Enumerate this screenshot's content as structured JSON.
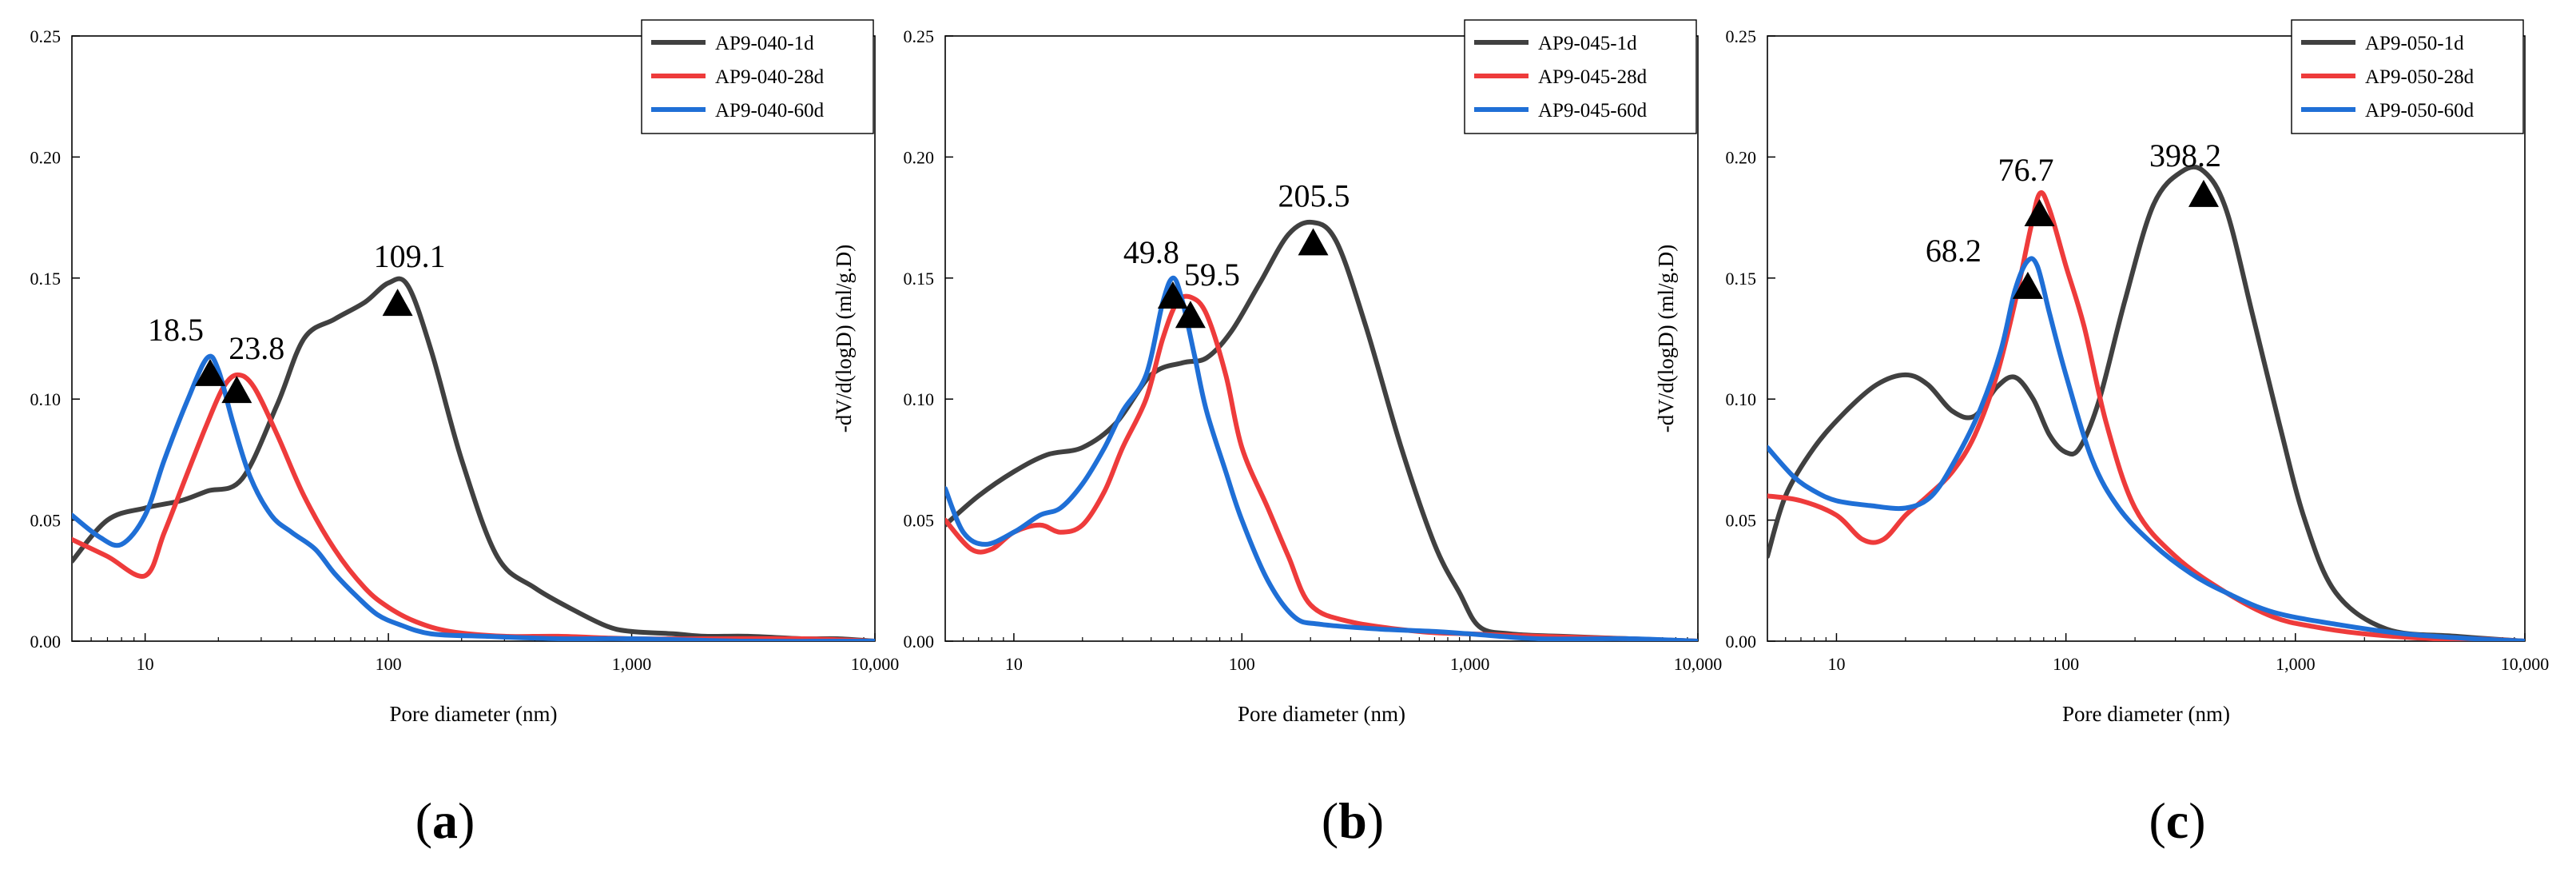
{
  "chart_data": [
    {
      "type": "line",
      "panel_label": "a",
      "xscale": "log",
      "xlim": [
        5,
        10000
      ],
      "ylim": [
        0,
        0.25
      ],
      "xticks": [
        10,
        100,
        1000,
        10000
      ],
      "xticklabels": [
        "10",
        "100",
        "1,000",
        "10,000"
      ],
      "yticks": [
        0,
        0.05,
        0.1,
        0.15,
        0.2,
        0.25
      ],
      "yticklabels": [
        "0.00",
        "0.05",
        "0.10",
        "0.15",
        "0.20",
        "0.25"
      ],
      "xlabel": "Pore diameter (nm)",
      "ylabel": "-dV/d(logD) (ml/g.D)",
      "legend": "top-right",
      "series": [
        {
          "name": "AP9-040-1d",
          "color": "#404040",
          "x": [
            5,
            7,
            10,
            14,
            18,
            25,
            35,
            45,
            60,
            80,
            100,
            120,
            150,
            200,
            280,
            400,
            600,
            800,
            1000,
            1500,
            2000,
            3000,
            5000,
            7000,
            10000
          ],
          "y": [
            0.033,
            0.05,
            0.055,
            0.058,
            0.062,
            0.067,
            0.098,
            0.125,
            0.133,
            0.14,
            0.148,
            0.147,
            0.12,
            0.075,
            0.035,
            0.022,
            0.012,
            0.006,
            0.004,
            0.003,
            0.002,
            0.002,
            0.001,
            0.001,
            0.0
          ]
        },
        {
          "name": "AP9-040-28d",
          "color": "#ee3b3b",
          "x": [
            5,
            7,
            10,
            12,
            15,
            18,
            21,
            24,
            28,
            35,
            45,
            60,
            80,
            100,
            130,
            180,
            300,
            500,
            1000,
            2000,
            5000,
            10000
          ],
          "y": [
            0.042,
            0.035,
            0.027,
            0.045,
            0.07,
            0.09,
            0.105,
            0.11,
            0.105,
            0.085,
            0.06,
            0.038,
            0.022,
            0.014,
            0.008,
            0.004,
            0.002,
            0.002,
            0.001,
            0.001,
            0.001,
            0.0
          ]
        },
        {
          "name": "AP9-040-60d",
          "color": "#1f6fd6",
          "x": [
            5,
            6.5,
            8,
            10,
            12,
            15,
            18,
            20,
            23,
            27,
            33,
            40,
            50,
            60,
            75,
            90,
            110,
            150,
            250,
            500,
            1000,
            3000,
            10000
          ],
          "y": [
            0.052,
            0.043,
            0.04,
            0.052,
            0.075,
            0.1,
            0.117,
            0.112,
            0.09,
            0.068,
            0.052,
            0.045,
            0.038,
            0.028,
            0.018,
            0.011,
            0.007,
            0.003,
            0.002,
            0.001,
            0.001,
            0.0,
            0.0
          ]
        }
      ],
      "annotations": [
        {
          "text": "18.5",
          "x": 18.5,
          "y": 0.111
        },
        {
          "text": "23.8",
          "x": 23.8,
          "y": 0.104
        },
        {
          "text": "109.1",
          "x": 109.1,
          "y": 0.14
        }
      ]
    },
    {
      "type": "line",
      "panel_label": "b",
      "xscale": "log",
      "xlim": [
        5,
        10000
      ],
      "ylim": [
        0,
        0.25
      ],
      "xticks": [
        10,
        100,
        1000,
        10000
      ],
      "xticklabels": [
        "10",
        "100",
        "1,000",
        "10,000"
      ],
      "yticks": [
        0,
        0.05,
        0.1,
        0.15,
        0.2,
        0.25
      ],
      "yticklabels": [
        "0.00",
        "0.05",
        "0.10",
        "0.15",
        "0.20",
        "0.25"
      ],
      "xlabel": "Pore diameter (nm)",
      "ylabel": "-dV/d(logD) (ml/g.D)",
      "legend": "top-right",
      "series": [
        {
          "name": "AP9-045-1d",
          "color": "#404040",
          "x": [
            5,
            7,
            10,
            14,
            20,
            28,
            40,
            55,
            70,
            90,
            120,
            160,
            205,
            260,
            350,
            500,
            700,
            900,
            1100,
            1500,
            2500,
            5000,
            10000
          ],
          "y": [
            0.048,
            0.06,
            0.07,
            0.077,
            0.08,
            0.09,
            0.11,
            0.115,
            0.117,
            0.128,
            0.148,
            0.168,
            0.173,
            0.165,
            0.13,
            0.08,
            0.04,
            0.02,
            0.006,
            0.003,
            0.002,
            0.001,
            0.0
          ]
        },
        {
          "name": "AP9-045-28d",
          "color": "#ee3b3b",
          "x": [
            5,
            6.5,
            8,
            10,
            13,
            16,
            20,
            25,
            30,
            38,
            45,
            52,
            60,
            70,
            85,
            100,
            130,
            160,
            200,
            300,
            600,
            1000,
            2000,
            5000,
            10000
          ],
          "y": [
            0.05,
            0.038,
            0.038,
            0.045,
            0.048,
            0.045,
            0.048,
            0.062,
            0.08,
            0.1,
            0.125,
            0.14,
            0.142,
            0.135,
            0.11,
            0.08,
            0.055,
            0.035,
            0.015,
            0.008,
            0.004,
            0.003,
            0.002,
            0.001,
            0.0
          ]
        },
        {
          "name": "AP9-045-60d",
          "color": "#1f6fd6",
          "x": [
            5,
            6,
            7.5,
            10,
            13,
            16,
            20,
            25,
            30,
            38,
            45,
            50,
            55,
            62,
            70,
            85,
            100,
            130,
            170,
            220,
            400,
            700,
            1000,
            2000,
            5000,
            10000
          ],
          "y": [
            0.063,
            0.045,
            0.04,
            0.045,
            0.052,
            0.055,
            0.065,
            0.08,
            0.095,
            0.11,
            0.14,
            0.15,
            0.14,
            0.118,
            0.095,
            0.07,
            0.05,
            0.025,
            0.01,
            0.007,
            0.005,
            0.004,
            0.003,
            0.001,
            0.001,
            0.0
          ]
        }
      ],
      "annotations": [
        {
          "text": "49.8",
          "x": 49.8,
          "y": 0.143
        },
        {
          "text": "59.5",
          "x": 59.5,
          "y": 0.135
        },
        {
          "text": "205.5",
          "x": 205.5,
          "y": 0.165
        }
      ]
    },
    {
      "type": "line",
      "panel_label": "c",
      "xscale": "log",
      "xlim": [
        5,
        10000
      ],
      "ylim": [
        0,
        0.25
      ],
      "xticks": [
        10,
        100,
        1000,
        10000
      ],
      "xticklabels": [
        "10",
        "100",
        "1,000",
        "10,000"
      ],
      "yticks": [
        0,
        0.05,
        0.1,
        0.15,
        0.2,
        0.25
      ],
      "yticklabels": [
        "0.00",
        "0.05",
        "0.10",
        "0.15",
        "0.20",
        "0.25"
      ],
      "xlabel": "Pore diameter (nm)",
      "ylabel": "-dV/d(logD) (ml/g.D)",
      "legend": "top-right",
      "series": [
        {
          "name": "AP9-050-1d",
          "color": "#404040",
          "x": [
            5,
            6,
            8,
            11,
            15,
            20,
            25,
            32,
            40,
            50,
            60,
            72,
            85,
            100,
            115,
            140,
            180,
            240,
            320,
            400,
            500,
            650,
            850,
            1100,
            1500,
            2500,
            5000,
            10000
          ],
          "y": [
            0.035,
            0.06,
            0.08,
            0.095,
            0.106,
            0.11,
            0.106,
            0.095,
            0.093,
            0.105,
            0.109,
            0.1,
            0.085,
            0.078,
            0.08,
            0.1,
            0.14,
            0.18,
            0.194,
            0.194,
            0.178,
            0.135,
            0.09,
            0.05,
            0.02,
            0.005,
            0.002,
            0.0
          ]
        },
        {
          "name": "AP9-050-28d",
          "color": "#ee3b3b",
          "x": [
            5,
            7,
            10,
            13,
            16,
            20,
            25,
            32,
            40,
            50,
            60,
            70,
            77,
            85,
            100,
            120,
            150,
            200,
            300,
            500,
            800,
            1200,
            2000,
            4000,
            6000,
            10000
          ],
          "y": [
            0.06,
            0.058,
            0.052,
            0.042,
            0.042,
            0.052,
            0.06,
            0.07,
            0.085,
            0.11,
            0.14,
            0.17,
            0.185,
            0.178,
            0.155,
            0.13,
            0.09,
            0.055,
            0.035,
            0.02,
            0.01,
            0.006,
            0.003,
            0.001,
            0.001,
            0.0
          ]
        },
        {
          "name": "AP9-050-60d",
          "color": "#1f6fd6",
          "x": [
            5,
            6.5,
            8,
            10,
            14,
            20,
            26,
            33,
            42,
            52,
            60,
            68,
            75,
            85,
            100,
            130,
            170,
            240,
            350,
            500,
            800,
            1500,
            3000,
            6000,
            10000
          ],
          "y": [
            0.08,
            0.068,
            0.062,
            0.058,
            0.056,
            0.055,
            0.06,
            0.075,
            0.095,
            0.12,
            0.145,
            0.157,
            0.155,
            0.135,
            0.11,
            0.075,
            0.055,
            0.04,
            0.028,
            0.02,
            0.012,
            0.007,
            0.003,
            0.001,
            0.0
          ]
        }
      ],
      "annotations": [
        {
          "text": "68.2",
          "x": 68.2,
          "y": 0.147
        },
        {
          "text": "76.7",
          "x": 76.7,
          "y": 0.177
        },
        {
          "text": "398.2",
          "x": 398.2,
          "y": 0.185
        }
      ]
    }
  ]
}
